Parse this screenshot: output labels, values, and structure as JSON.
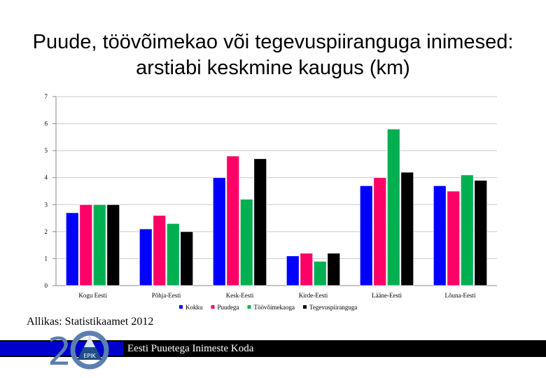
{
  "title": "Puude, töövõimekao või tegevuspiiranguga inimesed: arstiabi keskmine kaugus (km)",
  "source": "Allikas: Statistikaamet 2012",
  "footer": {
    "org_name": "Eesti Puuetega Inimeste Koda"
  },
  "logo": {
    "number": "20",
    "badge": "EPIK"
  },
  "colors": {
    "Kokku": "#0000ff",
    "Puudega": "#ff0066",
    "Töövõimekaoga": "#00b050",
    "Tegevuspiiranguga": "#000000",
    "footer": "#0000cc"
  },
  "chart_data": {
    "type": "bar",
    "title": "Puude, töövõimekao või tegevuspiiranguga inimesed: arstiabi keskmine kaugus (km)",
    "xlabel": "",
    "ylabel": "",
    "ylim": [
      0,
      7
    ],
    "yticks": [
      0,
      1,
      2,
      3,
      4,
      5,
      6,
      7
    ],
    "grid": true,
    "legend_position": "bottom",
    "categories": [
      "Kogu Eesti",
      "Põhja-Eesti",
      "Kesk-Eesti",
      "Kirde-Eesti",
      "Lääne-Eesti",
      "Lõuna-Eesti"
    ],
    "series": [
      {
        "name": "Kokku",
        "values": [
          2.7,
          2.1,
          4.0,
          1.1,
          3.7,
          3.7
        ]
      },
      {
        "name": "Puudega",
        "values": [
          3.0,
          2.6,
          4.8,
          1.2,
          4.0,
          3.5
        ]
      },
      {
        "name": "Töövõimekaoga",
        "values": [
          3.0,
          2.3,
          3.2,
          0.9,
          5.8,
          4.1
        ]
      },
      {
        "name": "Tegevuspiiranguga",
        "values": [
          3.0,
          2.0,
          4.7,
          1.2,
          4.2,
          3.9
        ]
      }
    ]
  }
}
